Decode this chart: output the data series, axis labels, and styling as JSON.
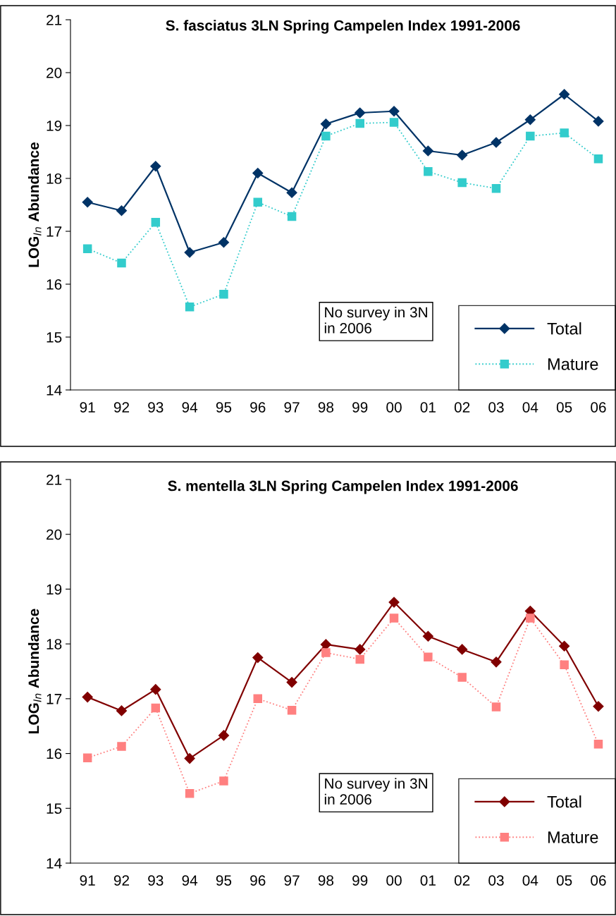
{
  "chart_data": [
    {
      "type": "line",
      "title": "S. fasciatus 3LN Spring Campelen Index 1991-2006",
      "ylabel": "LOG$_{ln}$ Abundance",
      "categories": [
        "91",
        "92",
        "93",
        "94",
        "95",
        "96",
        "97",
        "98",
        "99",
        "00",
        "01",
        "02",
        "03",
        "04",
        "05",
        "06"
      ],
      "ylim": [
        14,
        21
      ],
      "yticks": [
        14,
        15,
        16,
        17,
        18,
        19,
        20,
        21
      ],
      "grid": false,
      "legend": "bottom right",
      "annotations": [
        "No survey in 3N\nin 2006"
      ],
      "series": [
        {
          "name": "Total",
          "color": "#003366",
          "marker": "diamond",
          "line_style": "solid",
          "values": [
            17.55,
            17.39,
            18.23,
            16.6,
            16.79,
            18.1,
            17.73,
            19.03,
            19.24,
            19.27,
            18.52,
            18.44,
            18.68,
            19.11,
            19.59,
            19.08
          ]
        },
        {
          "name": "Mature",
          "color": "#33cccc",
          "marker": "square",
          "line_style": "dotted",
          "values": [
            16.67,
            16.4,
            17.17,
            15.57,
            15.81,
            17.55,
            17.28,
            18.8,
            19.04,
            19.06,
            18.13,
            17.92,
            17.81,
            18.8,
            18.86,
            18.37
          ]
        }
      ]
    },
    {
      "type": "line",
      "title": "S. mentella 3LN Spring Campelen Index 1991-2006",
      "ylabel": "LOG$_{ln}$ Abundance",
      "categories": [
        "91",
        "92",
        "93",
        "94",
        "95",
        "96",
        "97",
        "98",
        "99",
        "00",
        "01",
        "02",
        "03",
        "04",
        "05",
        "06"
      ],
      "ylim": [
        14,
        21
      ],
      "yticks": [
        14,
        15,
        16,
        17,
        18,
        19,
        20,
        21
      ],
      "grid": false,
      "legend": "bottom right",
      "annotations": [
        "No survey in 3N\nin 2006"
      ],
      "series": [
        {
          "name": "Total",
          "color": "#800000",
          "marker": "diamond",
          "line_style": "solid",
          "values": [
            17.03,
            16.78,
            17.17,
            15.91,
            16.33,
            17.75,
            17.3,
            17.99,
            17.9,
            18.76,
            18.14,
            17.9,
            17.67,
            18.6,
            17.96,
            16.86
          ]
        },
        {
          "name": "Mature",
          "color": "#ff8080",
          "marker": "square",
          "line_style": "dotted",
          "values": [
            15.92,
            16.13,
            16.83,
            15.27,
            15.5,
            17.0,
            16.79,
            17.84,
            17.72,
            18.47,
            17.76,
            17.39,
            16.85,
            18.47,
            17.62,
            16.17
          ]
        }
      ]
    }
  ]
}
